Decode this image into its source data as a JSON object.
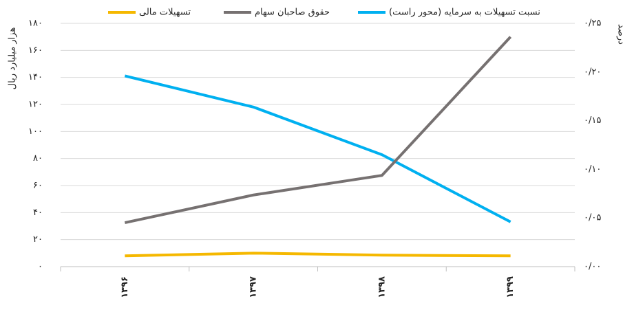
{
  "chart_data": {
    "type": "line",
    "y_label": "هزار میلیارد ریال",
    "y2_label": "درصد",
    "categories": [
      "۱۳۹۶",
      "۱۳۹۷",
      "۱۳۹۸",
      "۱۳۹۹"
    ],
    "series": [
      {
        "name": "نسبت تسهیلات به سرمایه (محور راست)",
        "color": "#00b0f0",
        "axis": "y2",
        "values": [
          0.196,
          0.164,
          0.115,
          0.046
        ]
      },
      {
        "name": "حقوق صاحبان سهام",
        "color": "#767171",
        "values": [
          32.5,
          53,
          67.5,
          170
        ]
      },
      {
        "name": "تسهیلات مالی",
        "color": "#f5b800",
        "values": [
          8,
          10,
          8.5,
          8
        ]
      }
    ],
    "ylim": [
      0,
      180
    ],
    "yticks": [
      {
        "value": 0,
        "label": "۰"
      },
      {
        "value": 20,
        "label": "۲۰"
      },
      {
        "value": 40,
        "label": "۴۰"
      },
      {
        "value": 60,
        "label": "۶۰"
      },
      {
        "value": 80,
        "label": "۸۰"
      },
      {
        "value": 100,
        "label": "۱۰۰"
      },
      {
        "value": 120,
        "label": "۱۲۰"
      },
      {
        "value": 140,
        "label": "۱۴۰"
      },
      {
        "value": 160,
        "label": "۱۶۰"
      },
      {
        "value": 180,
        "label": "۱۸۰"
      }
    ],
    "y2lim": [
      0,
      0.25
    ],
    "y2ticks": [
      {
        "value": 0,
        "label": "۰/۰۰"
      },
      {
        "value": 0.05,
        "label": "۰/۰۵"
      },
      {
        "value": 0.1,
        "label": "۰/۱۰"
      },
      {
        "value": 0.15,
        "label": "۰/۱۵"
      },
      {
        "value": 0.2,
        "label": "۰/۲۰"
      },
      {
        "value": 0.25,
        "label": "۰/۲۵"
      }
    ],
    "grid": true
  }
}
